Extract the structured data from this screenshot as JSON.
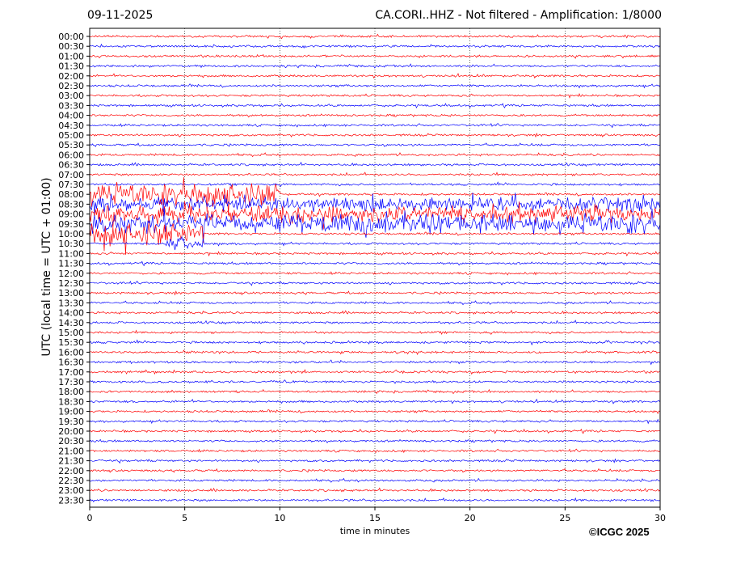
{
  "header": {
    "date": "09-11-2025",
    "station_title": "CA.CORI..HHZ - Not filtered - Amplification: 1/8000"
  },
  "footer": {
    "copyright": "©ICGC 2025"
  },
  "chart_data": {
    "type": "line",
    "title": "CA.CORI..HHZ - Not filtered - Amplification: 1/8000",
    "date": "09-11-2025",
    "xlabel": "time in minutes",
    "ylabel": "UTC (local time = UTC + 01:00)",
    "xlim": [
      0,
      30
    ],
    "x_ticks": [
      0,
      5,
      10,
      15,
      20,
      25,
      30
    ],
    "x_tick_labels": [
      "0",
      "5",
      "10",
      "15",
      "20",
      "25",
      "30"
    ],
    "y_tick_labels": [
      "00:00",
      "00:30",
      "01:00",
      "01:30",
      "02:00",
      "02:30",
      "03:00",
      "03:30",
      "04:00",
      "04:30",
      "05:00",
      "05:30",
      "06:00",
      "06:30",
      "07:00",
      "07:30",
      "08:00",
      "08:30",
      "09:00",
      "09:30",
      "10:00",
      "10:30",
      "11:00",
      "11:30",
      "12:00",
      "12:30",
      "13:00",
      "13:30",
      "14:00",
      "14:30",
      "15:00",
      "15:30",
      "16:00",
      "16:30",
      "17:00",
      "17:30",
      "18:00",
      "18:30",
      "19:00",
      "19:30",
      "20:00",
      "20:30",
      "21:00",
      "21:30",
      "22:00",
      "22:30",
      "23:00",
      "23:30"
    ],
    "trace_colors": [
      "#ff0000",
      "#0000ff"
    ],
    "grid": "vertical dotted at 5-minute intervals",
    "activity_windows": [
      {
        "trace": "08:00",
        "x_range": [
          0,
          10
        ],
        "relative_amplitude": 0.9
      },
      {
        "trace": "08:30",
        "x_range": [
          0,
          30
        ],
        "relative_amplitude": 0.6
      },
      {
        "trace": "09:00",
        "x_range": [
          0,
          30
        ],
        "relative_amplitude": 0.7
      },
      {
        "trace": "09:30",
        "x_range": [
          0,
          30
        ],
        "relative_amplitude": 0.8
      },
      {
        "trace": "10:00",
        "x_range": [
          0,
          6
        ],
        "relative_amplitude": 0.9
      },
      {
        "trace": "10:30",
        "x_range": [
          4,
          6
        ],
        "relative_amplitude": 0.6
      }
    ]
  }
}
